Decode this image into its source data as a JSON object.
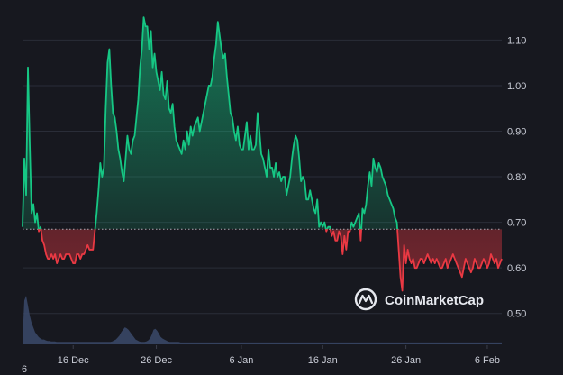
{
  "chart_data": {
    "type": "area",
    "baseline": 0.685,
    "ylim": [
      0.5,
      1.15
    ],
    "yticks": [
      "0.50",
      "0.60",
      "0.70",
      "0.80",
      "0.90",
      "1.00",
      "1.10"
    ],
    "ytick_values": [
      0.5,
      0.6,
      0.7,
      0.8,
      0.9,
      1.0,
      1.1
    ],
    "xtick_labels": [
      "16 Dec",
      "26 Dec",
      "6 Jan",
      "16 Jan",
      "26 Jan",
      "6 Feb"
    ],
    "xtick_index": [
      28,
      74,
      121,
      166,
      212,
      257
    ],
    "x_bottom_left_label": "6",
    "colors": {
      "up": "#16c784",
      "down": "#ea3943",
      "volume": "#3b4a6b",
      "grid": "#2a2d38",
      "background": "#17181f"
    },
    "price": [
      0.69,
      0.84,
      0.76,
      1.04,
      0.87,
      0.72,
      0.74,
      0.7,
      0.72,
      0.68,
      0.69,
      0.66,
      0.65,
      0.63,
      0.62,
      0.62,
      0.63,
      0.62,
      0.63,
      0.61,
      0.62,
      0.63,
      0.62,
      0.62,
      0.63,
      0.63,
      0.63,
      0.62,
      0.61,
      0.61,
      0.63,
      0.63,
      0.62,
      0.63,
      0.63,
      0.64,
      0.65,
      0.64,
      0.64,
      0.64,
      0.68,
      0.72,
      0.77,
      0.83,
      0.8,
      0.82,
      0.95,
      1.05,
      1.08,
      1.0,
      0.94,
      0.93,
      0.9,
      0.86,
      0.84,
      0.81,
      0.79,
      0.84,
      0.89,
      0.86,
      0.85,
      0.88,
      0.89,
      0.93,
      0.97,
      1.04,
      1.08,
      1.15,
      1.13,
      1.13,
      1.08,
      1.12,
      1.04,
      1.07,
      1.03,
      1.01,
      0.99,
      1.03,
      0.98,
      0.97,
      1.01,
      0.95,
      0.94,
      0.96,
      0.91,
      0.88,
      0.87,
      0.86,
      0.85,
      0.88,
      0.86,
      0.9,
      0.87,
      0.91,
      0.89,
      0.91,
      0.92,
      0.93,
      0.9,
      0.92,
      0.94,
      0.96,
      0.98,
      1.0,
      1.0,
      1.02,
      1.06,
      1.09,
      1.14,
      1.11,
      1.08,
      1.06,
      1.07,
      1.02,
      0.98,
      0.94,
      0.93,
      0.9,
      0.88,
      0.91,
      0.87,
      0.86,
      0.86,
      0.89,
      0.92,
      0.86,
      0.89,
      0.86,
      0.86,
      0.87,
      0.94,
      0.9,
      0.85,
      0.84,
      0.82,
      0.8,
      0.86,
      0.82,
      0.82,
      0.8,
      0.83,
      0.8,
      0.81,
      0.79,
      0.8,
      0.8,
      0.76,
      0.78,
      0.8,
      0.84,
      0.87,
      0.89,
      0.88,
      0.84,
      0.79,
      0.8,
      0.79,
      0.75,
      0.75,
      0.77,
      0.75,
      0.73,
      0.72,
      0.75,
      0.69,
      0.7,
      0.69,
      0.7,
      0.68,
      0.69,
      0.69,
      0.67,
      0.68,
      0.66,
      0.66,
      0.68,
      0.67,
      0.63,
      0.67,
      0.64,
      0.68,
      0.68,
      0.7,
      0.69,
      0.7,
      0.71,
      0.72,
      0.66,
      0.73,
      0.72,
      0.74,
      0.78,
      0.81,
      0.78,
      0.84,
      0.82,
      0.81,
      0.83,
      0.82,
      0.8,
      0.79,
      0.78,
      0.76,
      0.75,
      0.74,
      0.73,
      0.71,
      0.7,
      0.64,
      0.58,
      0.55,
      0.65,
      0.61,
      0.64,
      0.62,
      0.61,
      0.62,
      0.6,
      0.6,
      0.61,
      0.62,
      0.62,
      0.61,
      0.62,
      0.63,
      0.62,
      0.61,
      0.62,
      0.61,
      0.62,
      0.61,
      0.6,
      0.6,
      0.61,
      0.62,
      0.6,
      0.61,
      0.62,
      0.63,
      0.62,
      0.61,
      0.6,
      0.59,
      0.58,
      0.6,
      0.62,
      0.61,
      0.6,
      0.59,
      0.6,
      0.62,
      0.61,
      0.6,
      0.6,
      0.61,
      0.62,
      0.61,
      0.6,
      0.61,
      0.63,
      0.62,
      0.61,
      0.62,
      0.6,
      0.61,
      0.62
    ],
    "volume": [
      0.1,
      0.9,
      1.0,
      0.8,
      0.6,
      0.45,
      0.35,
      0.25,
      0.2,
      0.15,
      0.12,
      0.1,
      0.1,
      0.08,
      0.07,
      0.07,
      0.06,
      0.06,
      0.06,
      0.05,
      0.05,
      0.05,
      0.05,
      0.05,
      0.05,
      0.05,
      0.05,
      0.05,
      0.05,
      0.05,
      0.05,
      0.05,
      0.05,
      0.05,
      0.05,
      0.05,
      0.05,
      0.05,
      0.05,
      0.05,
      0.05,
      0.05,
      0.05,
      0.05,
      0.05,
      0.05,
      0.05,
      0.05,
      0.05,
      0.05,
      0.06,
      0.08,
      0.1,
      0.14,
      0.18,
      0.25,
      0.3,
      0.35,
      0.33,
      0.3,
      0.25,
      0.2,
      0.15,
      0.1,
      0.08,
      0.06,
      0.05,
      0.05,
      0.05,
      0.06,
      0.08,
      0.12,
      0.2,
      0.3,
      0.32,
      0.28,
      0.22,
      0.15,
      0.12,
      0.1,
      0.08,
      0.06,
      0.05,
      0.05,
      0.05,
      0.05,
      0.05,
      0.05,
      0.04,
      0.04,
      0.04,
      0.04,
      0.04,
      0.04,
      0.04,
      0.04,
      0.04,
      0.04,
      0.04,
      0.04,
      0.04,
      0.04,
      0.04,
      0.04,
      0.04,
      0.04,
      0.04,
      0.04,
      0.04,
      0.04,
      0.04,
      0.04,
      0.04,
      0.04,
      0.04,
      0.04,
      0.04,
      0.04,
      0.04,
      0.04,
      0.04,
      0.04,
      0.04,
      0.04,
      0.04,
      0.04,
      0.04,
      0.04,
      0.04,
      0.04,
      0.04,
      0.04,
      0.04,
      0.04,
      0.04,
      0.04,
      0.04,
      0.04,
      0.04,
      0.04,
      0.04,
      0.04,
      0.04,
      0.04,
      0.04,
      0.04,
      0.04,
      0.04,
      0.04,
      0.04,
      0.04,
      0.04,
      0.04,
      0.04,
      0.04,
      0.04,
      0.04,
      0.04,
      0.04,
      0.04,
      0.04,
      0.04,
      0.04,
      0.04,
      0.04,
      0.04,
      0.04,
      0.04,
      0.04,
      0.04,
      0.04,
      0.04,
      0.04,
      0.04,
      0.04,
      0.04,
      0.04,
      0.04,
      0.04,
      0.04,
      0.04,
      0.04,
      0.04,
      0.04,
      0.04,
      0.04,
      0.04,
      0.04,
      0.04,
      0.04,
      0.04,
      0.04,
      0.04,
      0.04,
      0.04,
      0.04,
      0.04,
      0.04,
      0.04,
      0.04,
      0.04,
      0.04,
      0.04,
      0.04,
      0.04,
      0.04,
      0.04,
      0.04,
      0.04,
      0.04,
      0.04,
      0.04,
      0.04,
      0.04,
      0.04,
      0.04,
      0.04,
      0.04,
      0.04,
      0.04,
      0.04,
      0.04,
      0.04,
      0.04,
      0.04,
      0.04,
      0.04,
      0.04,
      0.04,
      0.04,
      0.04,
      0.04,
      0.04,
      0.04,
      0.04,
      0.04,
      0.04,
      0.04,
      0.04,
      0.04,
      0.04,
      0.04,
      0.04,
      0.04,
      0.04,
      0.04,
      0.04,
      0.04,
      0.04,
      0.04,
      0.04,
      0.04,
      0.04,
      0.04,
      0.04,
      0.04,
      0.04,
      0.04,
      0.04,
      0.04,
      0.04,
      0.04,
      0.04,
      0.04,
      0.04,
      0.04,
      0.04,
      0.04
    ]
  },
  "watermark": {
    "text": "CoinMarketCap"
  }
}
